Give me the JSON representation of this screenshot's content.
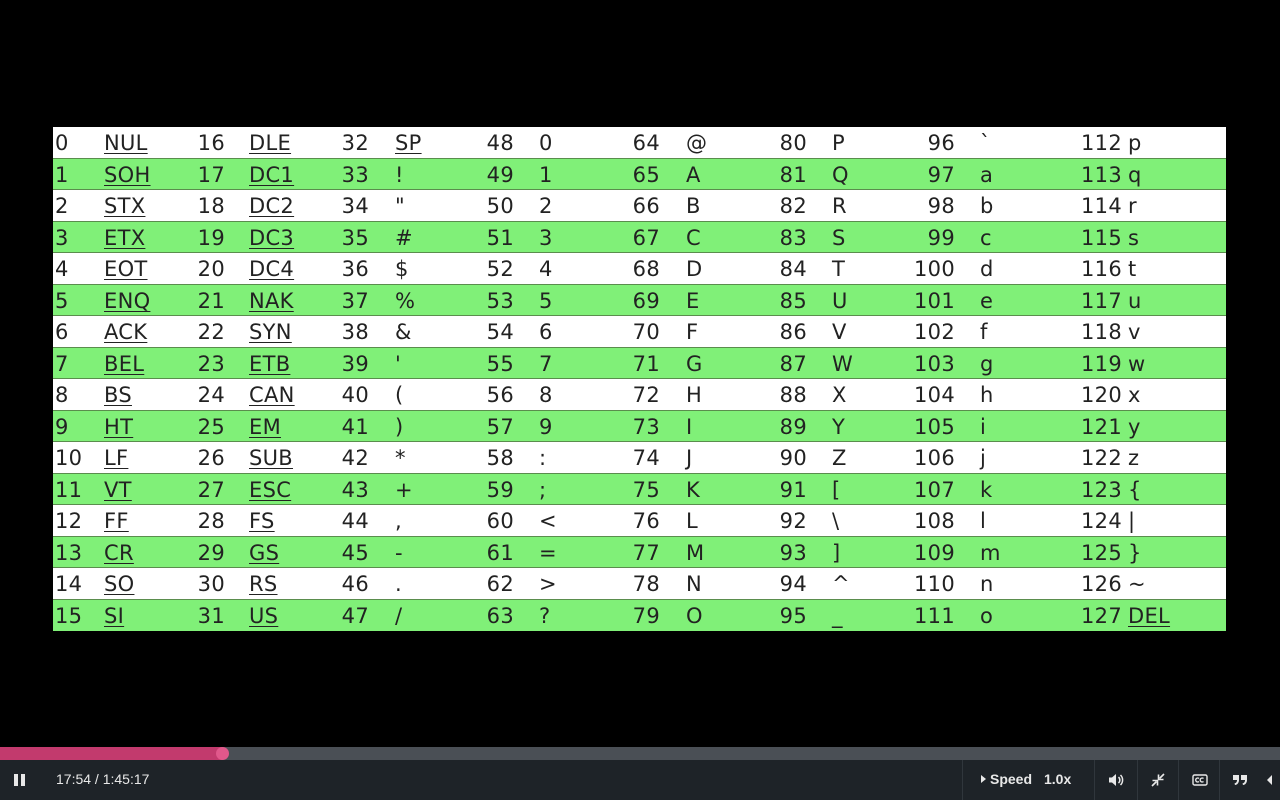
{
  "player": {
    "time": "17:54 / 1:45:17",
    "progress_fraction": 0.1733,
    "speed_label": "Speed",
    "speed_value": "1.0x",
    "colors": {
      "progress": "#c23a6d",
      "track": "#4a4f55",
      "bar": "#1e2328",
      "row_green": "#80f078"
    },
    "icons": [
      "pause-icon",
      "volume-icon",
      "exit-fullscreen-icon",
      "captions-icon",
      "transcript-quote-icon",
      "collapse-arrow-icon"
    ]
  },
  "ascii_rows": [
    [
      "0",
      "NUL",
      "16",
      "DLE",
      "32",
      "SP",
      "48",
      "0",
      "64",
      "@",
      "80",
      "P",
      "96",
      "`",
      "112",
      "p"
    ],
    [
      "1",
      "SOH",
      "17",
      "DC1",
      "33",
      "!",
      "49",
      "1",
      "65",
      "A",
      "81",
      "Q",
      "97",
      "a",
      "113",
      "q"
    ],
    [
      "2",
      "STX",
      "18",
      "DC2",
      "34",
      "\"",
      "50",
      "2",
      "66",
      "B",
      "82",
      "R",
      "98",
      "b",
      "114",
      "r"
    ],
    [
      "3",
      "ETX",
      "19",
      "DC3",
      "35",
      "#",
      "51",
      "3",
      "67",
      "C",
      "83",
      "S",
      "99",
      "c",
      "115",
      "s"
    ],
    [
      "4",
      "EOT",
      "20",
      "DC4",
      "36",
      "$",
      "52",
      "4",
      "68",
      "D",
      "84",
      "T",
      "100",
      "d",
      "116",
      "t"
    ],
    [
      "5",
      "ENQ",
      "21",
      "NAK",
      "37",
      "%",
      "53",
      "5",
      "69",
      "E",
      "85",
      "U",
      "101",
      "e",
      "117",
      "u"
    ],
    [
      "6",
      "ACK",
      "22",
      "SYN",
      "38",
      "&",
      "54",
      "6",
      "70",
      "F",
      "86",
      "V",
      "102",
      "f",
      "118",
      "v"
    ],
    [
      "7",
      "BEL",
      "23",
      "ETB",
      "39",
      "'",
      "55",
      "7",
      "71",
      "G",
      "87",
      "W",
      "103",
      "g",
      "119",
      "w"
    ],
    [
      "8",
      "BS",
      "24",
      "CAN",
      "40",
      "(",
      "56",
      "8",
      "72",
      "H",
      "88",
      "X",
      "104",
      "h",
      "120",
      "x"
    ],
    [
      "9",
      "HT",
      "25",
      "EM",
      "41",
      ")",
      "57",
      "9",
      "73",
      "I",
      "89",
      "Y",
      "105",
      "i",
      "121",
      "y"
    ],
    [
      "10",
      "LF",
      "26",
      "SUB",
      "42",
      "*",
      "58",
      ":",
      "74",
      "J",
      "90",
      "Z",
      "106",
      "j",
      "122",
      "z"
    ],
    [
      "11",
      "VT",
      "27",
      "ESC",
      "43",
      "+",
      "59",
      ";",
      "75",
      "K",
      "91",
      "[",
      "107",
      "k",
      "123",
      "{"
    ],
    [
      "12",
      "FF",
      "28",
      "FS",
      "44",
      ",",
      "60",
      "<",
      "76",
      "L",
      "92",
      "\\",
      "108",
      "l",
      "124",
      "|"
    ],
    [
      "13",
      "CR",
      "29",
      "GS",
      "45",
      "-",
      "61",
      "=",
      "77",
      "M",
      "93",
      "]",
      "109",
      "m",
      "125",
      "}"
    ],
    [
      "14",
      "SO",
      "30",
      "RS",
      "46",
      ".",
      "62",
      ">",
      "78",
      "N",
      "94",
      "^",
      "110",
      "n",
      "126",
      "~"
    ],
    [
      "15",
      "SI",
      "31",
      "US",
      "47",
      "/",
      "63",
      "?",
      "79",
      "O",
      "95",
      "_",
      "111",
      "o",
      "127",
      "DEL"
    ]
  ]
}
